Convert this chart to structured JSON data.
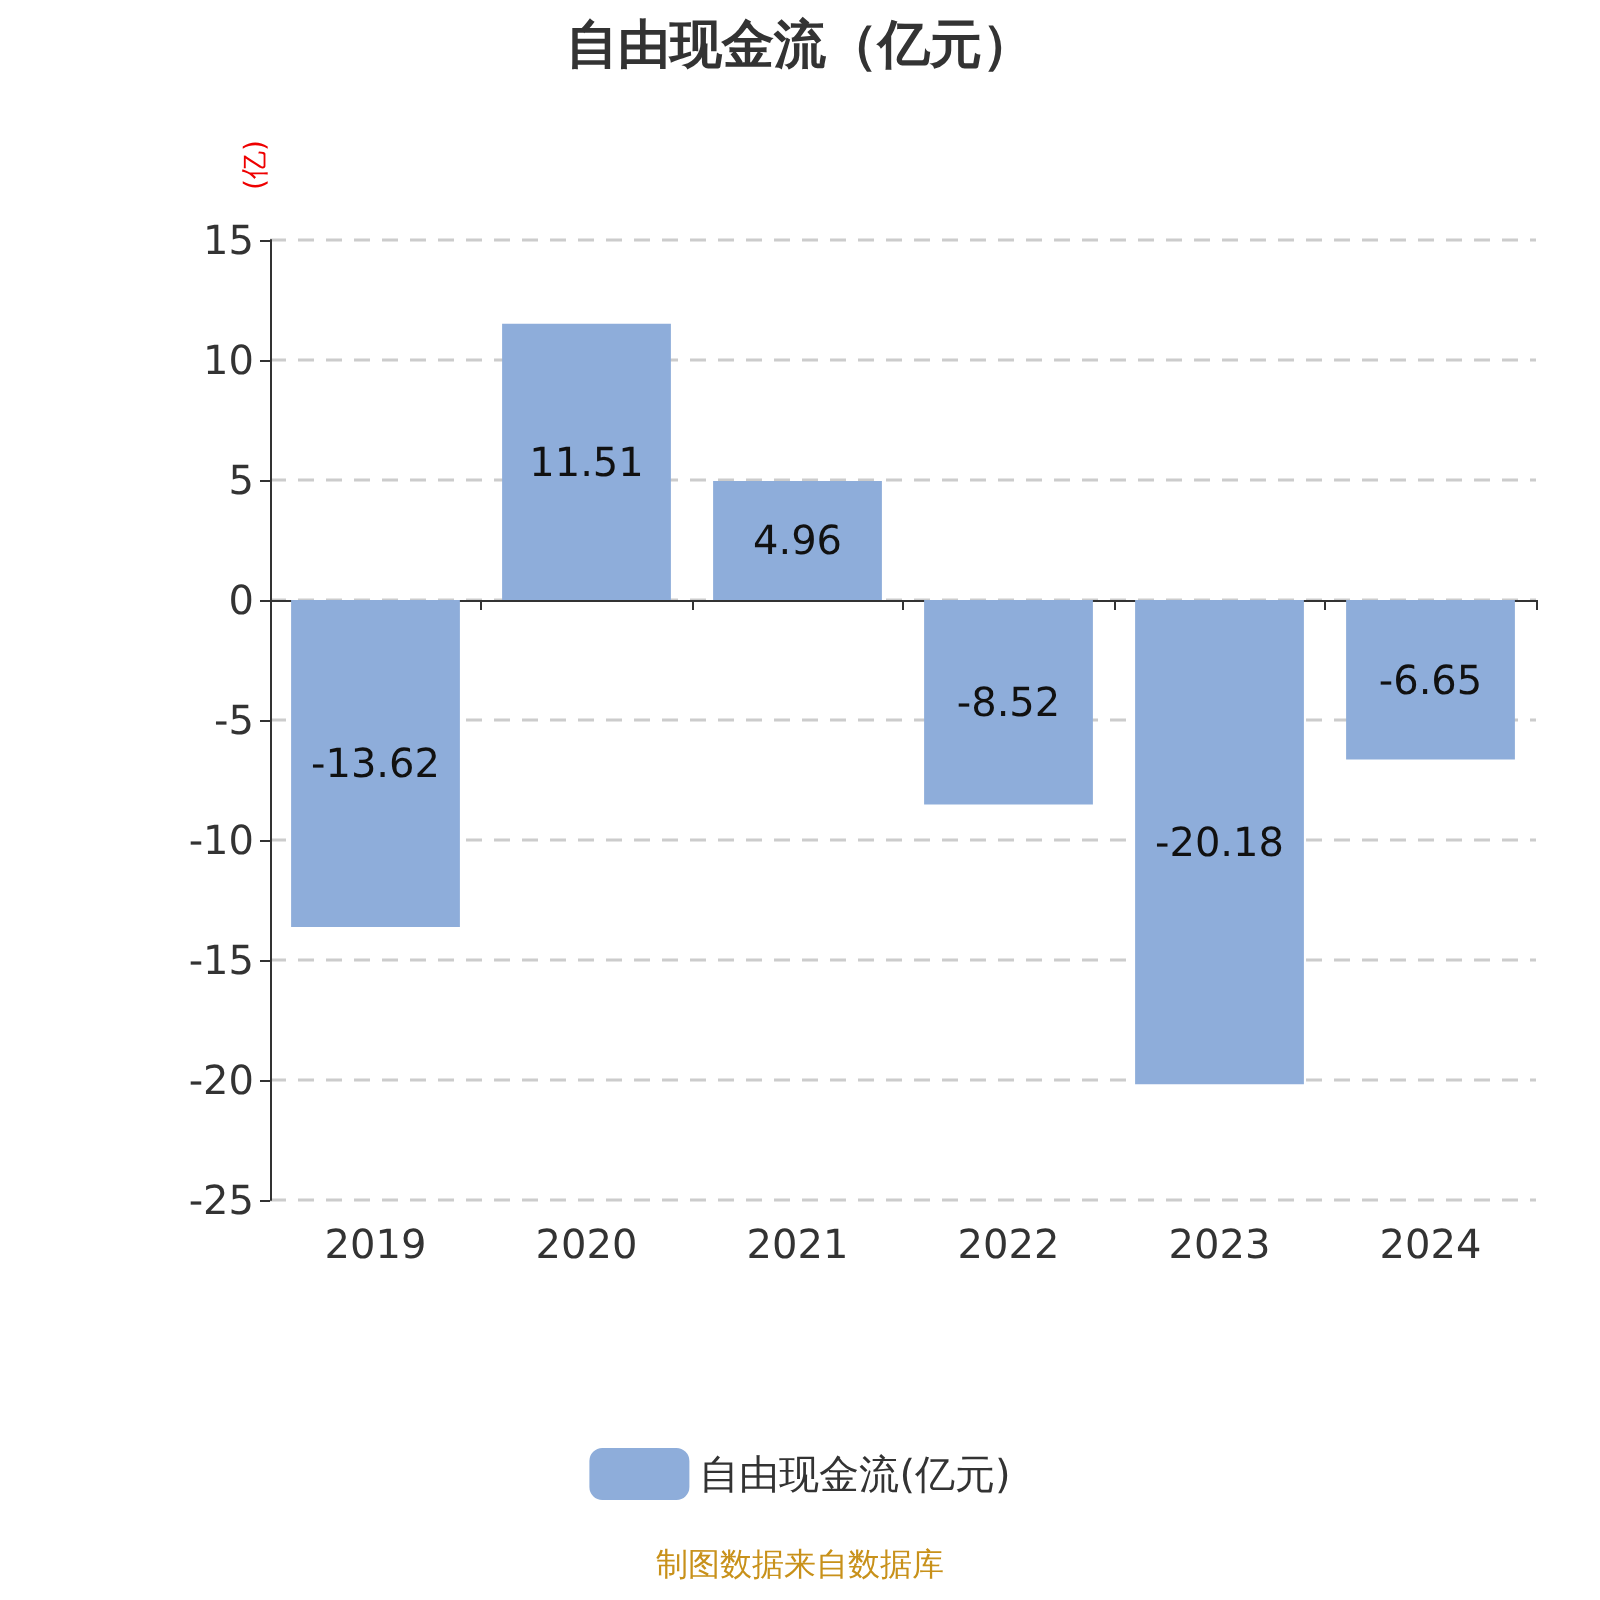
{
  "chart_data": {
    "type": "bar",
    "title": "自由现金流（亿元）",
    "ylabel": "(亿)",
    "categories": [
      "2019",
      "2020",
      "2021",
      "2022",
      "2023",
      "2024"
    ],
    "series": [
      {
        "name": "自由现金流(亿元)",
        "color": "#8eadda",
        "values": [
          -13.62,
          11.51,
          4.96,
          -8.52,
          -20.18,
          -6.65
        ]
      }
    ],
    "ylim": [
      -25,
      15
    ],
    "yticks": [
      -25,
      -20,
      -15,
      -10,
      -5,
      0,
      5,
      10,
      15
    ],
    "grid": "y",
    "legend": "bottom",
    "data_labels": true,
    "annotations": [
      "制图数据来自数据库"
    ]
  }
}
